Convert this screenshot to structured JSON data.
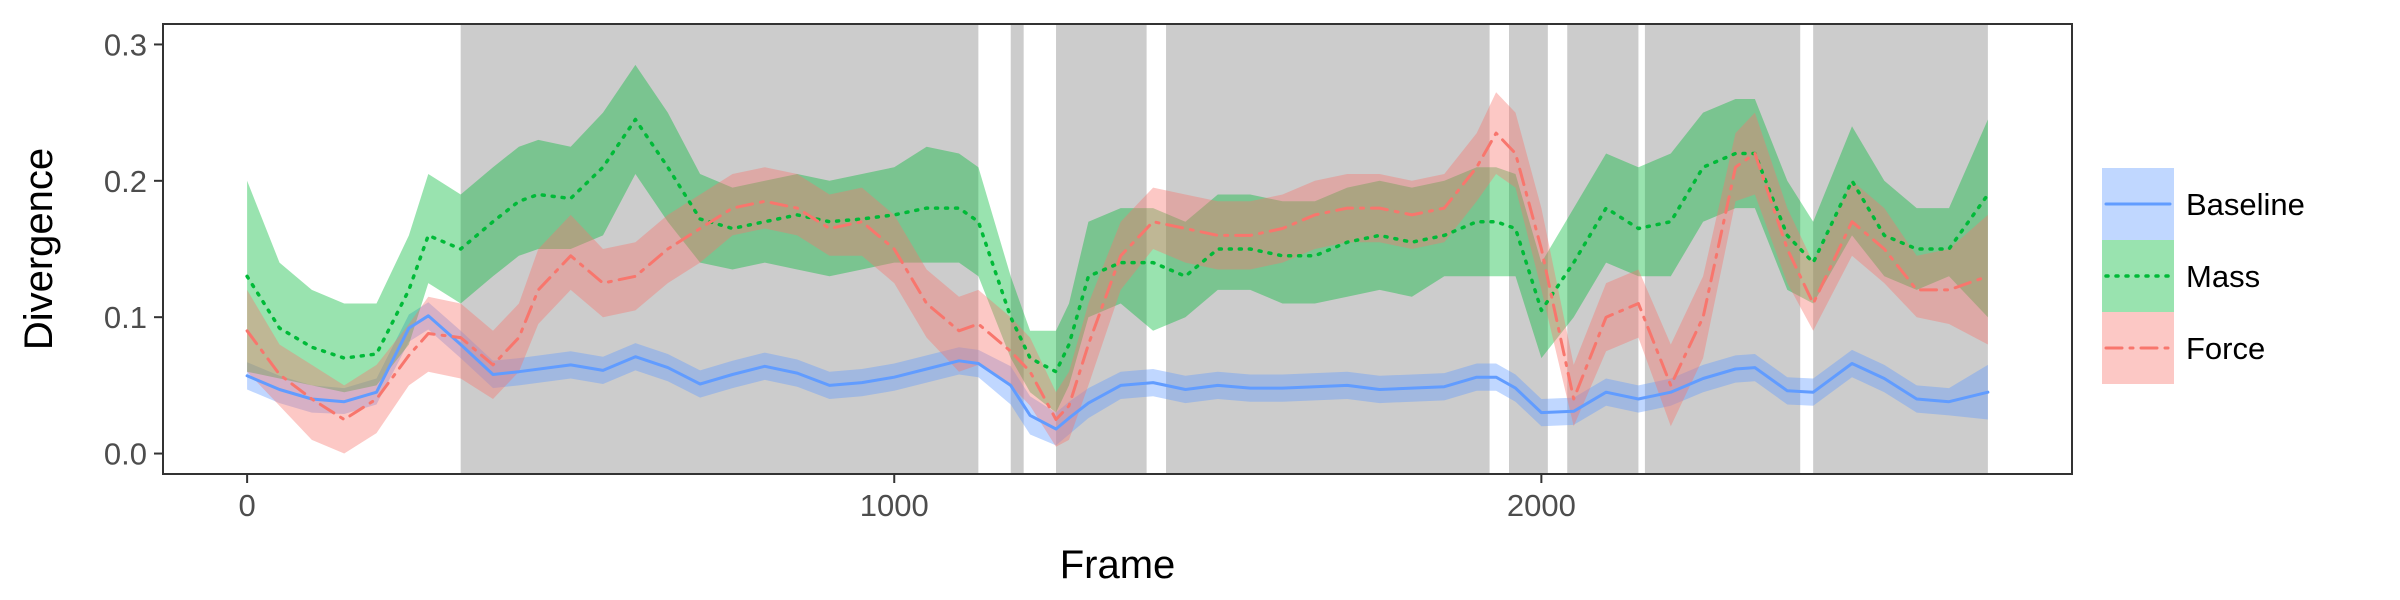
{
  "chart_data": {
    "type": "line",
    "title": "",
    "xlabel": "Frame",
    "ylabel": "Divergence",
    "xlim": [
      -130,
      2820
    ],
    "ylim": [
      -0.015,
      0.315
    ],
    "x_ticks": [
      0,
      1000,
      2000
    ],
    "x_tick_labels": [
      "0",
      "1000",
      "2000"
    ],
    "y_ticks": [
      0.0,
      0.1,
      0.2,
      0.3
    ],
    "y_tick_labels": [
      "0.0",
      "0.1",
      "0.2",
      "0.3"
    ],
    "grid": false,
    "legend_position": "right",
    "shaded_regions": [
      [
        330,
        1130
      ],
      [
        1180,
        1200
      ],
      [
        1250,
        1390
      ],
      [
        1420,
        1920
      ],
      [
        1950,
        2010
      ],
      [
        2040,
        2150
      ],
      [
        2160,
        2400
      ],
      [
        2420,
        2690
      ]
    ],
    "series": [
      {
        "name": "Baseline",
        "line_style": "solid",
        "color": "#619CFF",
        "band_color": "#619CFF",
        "x": [
          0,
          50,
          100,
          150,
          200,
          250,
          280,
          330,
          380,
          420,
          500,
          550,
          600,
          650,
          700,
          750,
          800,
          850,
          900,
          950,
          1000,
          1050,
          1100,
          1130,
          1180,
          1210,
          1250,
          1270,
          1300,
          1350,
          1400,
          1450,
          1500,
          1550,
          1600,
          1650,
          1700,
          1750,
          1800,
          1850,
          1900,
          1930,
          1960,
          2000,
          2050,
          2100,
          2150,
          2200,
          2250,
          2300,
          2330,
          2380,
          2420,
          2480,
          2530,
          2580,
          2630,
          2690
        ],
        "y": [
          0.057,
          0.047,
          0.04,
          0.038,
          0.045,
          0.092,
          0.101,
          0.08,
          0.058,
          0.06,
          0.065,
          0.061,
          0.071,
          0.063,
          0.051,
          0.058,
          0.064,
          0.059,
          0.05,
          0.052,
          0.056,
          0.062,
          0.068,
          0.066,
          0.05,
          0.028,
          0.018,
          0.026,
          0.037,
          0.05,
          0.052,
          0.047,
          0.05,
          0.048,
          0.048,
          0.049,
          0.05,
          0.047,
          0.048,
          0.049,
          0.056,
          0.056,
          0.048,
          0.03,
          0.031,
          0.045,
          0.04,
          0.045,
          0.055,
          0.062,
          0.063,
          0.046,
          0.045,
          0.066,
          0.055,
          0.04,
          0.038,
          0.045
        ],
        "lower": [
          0.047,
          0.037,
          0.03,
          0.029,
          0.036,
          0.082,
          0.091,
          0.07,
          0.048,
          0.05,
          0.055,
          0.051,
          0.061,
          0.053,
          0.041,
          0.048,
          0.054,
          0.049,
          0.04,
          0.042,
          0.046,
          0.052,
          0.058,
          0.056,
          0.036,
          0.014,
          0.006,
          0.014,
          0.026,
          0.04,
          0.042,
          0.037,
          0.04,
          0.038,
          0.038,
          0.039,
          0.04,
          0.037,
          0.038,
          0.039,
          0.046,
          0.046,
          0.038,
          0.02,
          0.021,
          0.035,
          0.03,
          0.035,
          0.045,
          0.052,
          0.053,
          0.036,
          0.035,
          0.056,
          0.045,
          0.03,
          0.028,
          0.025
        ],
        "upper": [
          0.067,
          0.057,
          0.05,
          0.048,
          0.055,
          0.102,
          0.111,
          0.09,
          0.068,
          0.07,
          0.075,
          0.071,
          0.081,
          0.073,
          0.061,
          0.068,
          0.074,
          0.069,
          0.06,
          0.062,
          0.066,
          0.072,
          0.078,
          0.076,
          0.064,
          0.042,
          0.03,
          0.038,
          0.048,
          0.06,
          0.062,
          0.057,
          0.06,
          0.058,
          0.058,
          0.059,
          0.06,
          0.057,
          0.058,
          0.059,
          0.066,
          0.066,
          0.058,
          0.04,
          0.041,
          0.055,
          0.05,
          0.055,
          0.065,
          0.072,
          0.073,
          0.056,
          0.055,
          0.076,
          0.065,
          0.05,
          0.048,
          0.065
        ]
      },
      {
        "name": "Mass",
        "line_style": "dotted",
        "color": "#00BA38",
        "band_color": "#00BA38",
        "x": [
          0,
          50,
          100,
          150,
          200,
          250,
          280,
          330,
          380,
          420,
          450,
          500,
          550,
          600,
          650,
          700,
          750,
          800,
          850,
          900,
          950,
          1000,
          1050,
          1100,
          1130,
          1180,
          1210,
          1250,
          1270,
          1300,
          1350,
          1400,
          1450,
          1500,
          1550,
          1600,
          1650,
          1700,
          1750,
          1800,
          1850,
          1900,
          1930,
          1960,
          2000,
          2050,
          2100,
          2150,
          2200,
          2250,
          2300,
          2330,
          2380,
          2420,
          2480,
          2530,
          2580,
          2630,
          2690
        ],
        "y": [
          0.13,
          0.092,
          0.078,
          0.07,
          0.073,
          0.12,
          0.16,
          0.15,
          0.17,
          0.185,
          0.19,
          0.187,
          0.21,
          0.245,
          0.21,
          0.172,
          0.165,
          0.17,
          0.175,
          0.17,
          0.172,
          0.175,
          0.18,
          0.18,
          0.17,
          0.1,
          0.07,
          0.06,
          0.08,
          0.13,
          0.14,
          0.14,
          0.13,
          0.15,
          0.15,
          0.145,
          0.145,
          0.155,
          0.16,
          0.155,
          0.16,
          0.17,
          0.17,
          0.165,
          0.105,
          0.14,
          0.18,
          0.165,
          0.17,
          0.21,
          0.22,
          0.22,
          0.16,
          0.14,
          0.2,
          0.16,
          0.15,
          0.15,
          0.19
        ],
        "lower": [
          0.06,
          0.055,
          0.05,
          0.045,
          0.05,
          0.08,
          0.125,
          0.11,
          0.13,
          0.145,
          0.15,
          0.15,
          0.16,
          0.205,
          0.17,
          0.14,
          0.135,
          0.14,
          0.135,
          0.13,
          0.135,
          0.14,
          0.14,
          0.14,
          0.13,
          0.07,
          0.045,
          0.03,
          0.05,
          0.1,
          0.11,
          0.09,
          0.1,
          0.12,
          0.12,
          0.11,
          0.11,
          0.115,
          0.12,
          0.115,
          0.13,
          0.13,
          0.13,
          0.13,
          0.07,
          0.1,
          0.14,
          0.13,
          0.13,
          0.17,
          0.18,
          0.18,
          0.12,
          0.11,
          0.16,
          0.13,
          0.12,
          0.13,
          0.1
        ],
        "upper": [
          0.2,
          0.14,
          0.12,
          0.11,
          0.11,
          0.16,
          0.205,
          0.19,
          0.21,
          0.225,
          0.23,
          0.225,
          0.25,
          0.285,
          0.25,
          0.205,
          0.195,
          0.2,
          0.205,
          0.2,
          0.205,
          0.21,
          0.225,
          0.22,
          0.21,
          0.13,
          0.09,
          0.09,
          0.11,
          0.17,
          0.18,
          0.18,
          0.17,
          0.19,
          0.19,
          0.185,
          0.185,
          0.195,
          0.2,
          0.195,
          0.2,
          0.21,
          0.21,
          0.205,
          0.14,
          0.18,
          0.22,
          0.21,
          0.22,
          0.25,
          0.26,
          0.26,
          0.2,
          0.17,
          0.24,
          0.2,
          0.18,
          0.18,
          0.245
        ]
      },
      {
        "name": "Force",
        "line_style": "dashdot",
        "color": "#F8766D",
        "band_color": "#F8766D",
        "x": [
          0,
          50,
          100,
          150,
          200,
          250,
          280,
          330,
          380,
          420,
          450,
          500,
          550,
          600,
          650,
          700,
          750,
          800,
          850,
          900,
          950,
          1000,
          1050,
          1100,
          1130,
          1180,
          1210,
          1250,
          1270,
          1300,
          1350,
          1400,
          1450,
          1500,
          1550,
          1600,
          1650,
          1700,
          1750,
          1800,
          1850,
          1900,
          1930,
          1960,
          2000,
          2050,
          2100,
          2150,
          2200,
          2250,
          2300,
          2330,
          2380,
          2420,
          2480,
          2530,
          2580,
          2630,
          2690
        ],
        "y": [
          0.09,
          0.058,
          0.04,
          0.025,
          0.04,
          0.072,
          0.088,
          0.085,
          0.065,
          0.085,
          0.12,
          0.145,
          0.125,
          0.13,
          0.15,
          0.165,
          0.18,
          0.185,
          0.18,
          0.165,
          0.17,
          0.15,
          0.11,
          0.09,
          0.095,
          0.075,
          0.06,
          0.025,
          0.035,
          0.08,
          0.145,
          0.17,
          0.165,
          0.16,
          0.16,
          0.165,
          0.175,
          0.18,
          0.18,
          0.175,
          0.18,
          0.21,
          0.235,
          0.22,
          0.15,
          0.04,
          0.1,
          0.11,
          0.05,
          0.1,
          0.21,
          0.22,
          0.15,
          0.11,
          0.17,
          0.15,
          0.12,
          0.12,
          0.13
        ],
        "lower": [
          0.06,
          0.035,
          0.01,
          0.0,
          0.015,
          0.05,
          0.06,
          0.055,
          0.04,
          0.06,
          0.095,
          0.12,
          0.1,
          0.105,
          0.125,
          0.14,
          0.16,
          0.165,
          0.16,
          0.145,
          0.145,
          0.125,
          0.085,
          0.06,
          0.065,
          0.05,
          0.035,
          0.005,
          0.01,
          0.05,
          0.12,
          0.15,
          0.14,
          0.135,
          0.135,
          0.14,
          0.15,
          0.155,
          0.155,
          0.15,
          0.155,
          0.185,
          0.205,
          0.195,
          0.12,
          0.02,
          0.075,
          0.085,
          0.02,
          0.07,
          0.185,
          0.19,
          0.125,
          0.09,
          0.145,
          0.125,
          0.1,
          0.095,
          0.08
        ],
        "upper": [
          0.12,
          0.08,
          0.065,
          0.05,
          0.065,
          0.095,
          0.115,
          0.11,
          0.09,
          0.11,
          0.15,
          0.175,
          0.15,
          0.155,
          0.175,
          0.19,
          0.205,
          0.21,
          0.205,
          0.19,
          0.195,
          0.175,
          0.135,
          0.115,
          0.12,
          0.1,
          0.085,
          0.045,
          0.06,
          0.11,
          0.17,
          0.195,
          0.19,
          0.185,
          0.185,
          0.19,
          0.2,
          0.205,
          0.205,
          0.2,
          0.205,
          0.235,
          0.265,
          0.25,
          0.18,
          0.065,
          0.125,
          0.135,
          0.08,
          0.13,
          0.235,
          0.25,
          0.18,
          0.14,
          0.2,
          0.18,
          0.145,
          0.15,
          0.175
        ]
      }
    ]
  }
}
